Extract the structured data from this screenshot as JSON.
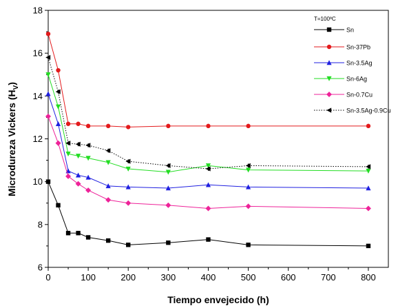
{
  "chart_data": {
    "type": "line",
    "xlabel": "Tiempo envejecido (h)",
    "ylabel_main": "Microdureza Vickers (H",
    "ylabel_sub": "V",
    "ylabel_close": ")",
    "annotation": "T=100ºC",
    "xlim": [
      0,
      850
    ],
    "ylim": [
      6,
      18
    ],
    "x_ticks": [
      0,
      100,
      200,
      300,
      400,
      500,
      600,
      700,
      800
    ],
    "y_ticks": [
      6,
      8,
      10,
      12,
      14,
      16,
      18
    ],
    "x_tick_labels": [
      "0",
      "100",
      "200",
      "300",
      "400",
      "500",
      "600",
      "700",
      "800"
    ],
    "y_tick_labels": [
      "6",
      "8",
      "10",
      "12",
      "14",
      "16",
      "18"
    ],
    "grid": false,
    "legend_position": "top-right",
    "series": [
      {
        "name": "Sn",
        "color": "#000000",
        "marker": "square",
        "dash": "solid",
        "x": [
          0,
          25,
          50,
          75,
          100,
          150,
          200,
          300,
          400,
          500,
          800
        ],
        "y": [
          10.0,
          8.9,
          7.6,
          7.6,
          7.4,
          7.25,
          7.05,
          7.15,
          7.3,
          7.05,
          7.0
        ]
      },
      {
        "name": "Sn-37Pb",
        "color": "#e31a1c",
        "marker": "circle",
        "dash": "solid",
        "x": [
          0,
          25,
          50,
          75,
          100,
          150,
          200,
          300,
          400,
          500,
          800
        ],
        "y": [
          16.9,
          15.2,
          12.7,
          12.7,
          12.6,
          12.6,
          12.55,
          12.6,
          12.6,
          12.6,
          12.6
        ]
      },
      {
        "name": "Sn-3.5Ag",
        "color": "#1f1fe0",
        "marker": "triangle-up",
        "dash": "solid",
        "x": [
          0,
          25,
          50,
          75,
          100,
          150,
          200,
          300,
          400,
          500,
          800
        ],
        "y": [
          14.1,
          12.7,
          10.5,
          10.3,
          10.2,
          9.8,
          9.75,
          9.7,
          9.85,
          9.75,
          9.7
        ]
      },
      {
        "name": "Sn-6Ag",
        "color": "#22dd22",
        "marker": "triangle-down",
        "dash": "solid",
        "x": [
          0,
          25,
          50,
          75,
          100,
          150,
          200,
          300,
          400,
          500,
          800
        ],
        "y": [
          15.0,
          13.5,
          11.3,
          11.2,
          11.1,
          10.9,
          10.6,
          10.45,
          10.75,
          10.55,
          10.5
        ]
      },
      {
        "name": "Sn-0.7Cu",
        "color": "#ee2299",
        "marker": "diamond",
        "dash": "solid",
        "x": [
          0,
          25,
          50,
          75,
          100,
          150,
          200,
          300,
          400,
          500,
          800
        ],
        "y": [
          13.05,
          11.8,
          10.25,
          9.9,
          9.6,
          9.15,
          9.0,
          8.9,
          8.75,
          8.85,
          8.75
        ]
      },
      {
        "name": "Sn-3.5Ag-0.9Cu",
        "color": "#000000",
        "marker": "triangle-left",
        "dash": "dotted",
        "x": [
          0,
          25,
          50,
          75,
          100,
          150,
          200,
          300,
          400,
          500,
          800
        ],
        "y": [
          15.8,
          14.2,
          11.8,
          11.75,
          11.7,
          11.45,
          10.95,
          10.75,
          10.6,
          10.75,
          10.7
        ]
      }
    ]
  }
}
